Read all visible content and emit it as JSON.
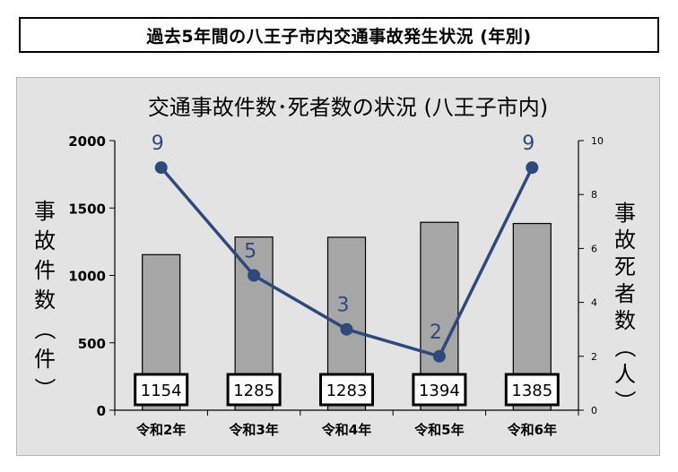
{
  "header": {
    "title": "過去5年間の八王子市内交通事故発生状況 (年別)"
  },
  "chart_data": {
    "type": "bar",
    "title": "交通事故件数･死者数の状況 (八王子市内)",
    "categories": [
      "令和2年",
      "令和3年",
      "令和4年",
      "令和5年",
      "令和6年"
    ],
    "series": [
      {
        "name": "",
        "type": "bar",
        "axis": "left",
        "values": [
          1154,
          1285,
          1283,
          1394,
          1385
        ]
      },
      {
        "name": "",
        "type": "line",
        "axis": "right",
        "values": [
          9,
          5,
          3,
          2,
          9
        ]
      }
    ],
    "y_left": {
      "label": "事故件数（件）",
      "range": [
        0,
        2000
      ],
      "ticks": [
        "0",
        "500",
        "1000",
        "1500",
        "2000"
      ]
    },
    "y_right": {
      "label": "事故死者数（人）",
      "range": [
        0,
        10
      ],
      "ticks": [
        "0",
        "2",
        "4",
        "6",
        "8",
        "10"
      ]
    },
    "grid": false,
    "colors": {
      "bar_fill": "#a6a6a6",
      "bar_stroke": "#000000",
      "line": "#2e4a7d",
      "line_label": "#2e4a7d",
      "frame_bg": "#e3e3e3"
    }
  }
}
